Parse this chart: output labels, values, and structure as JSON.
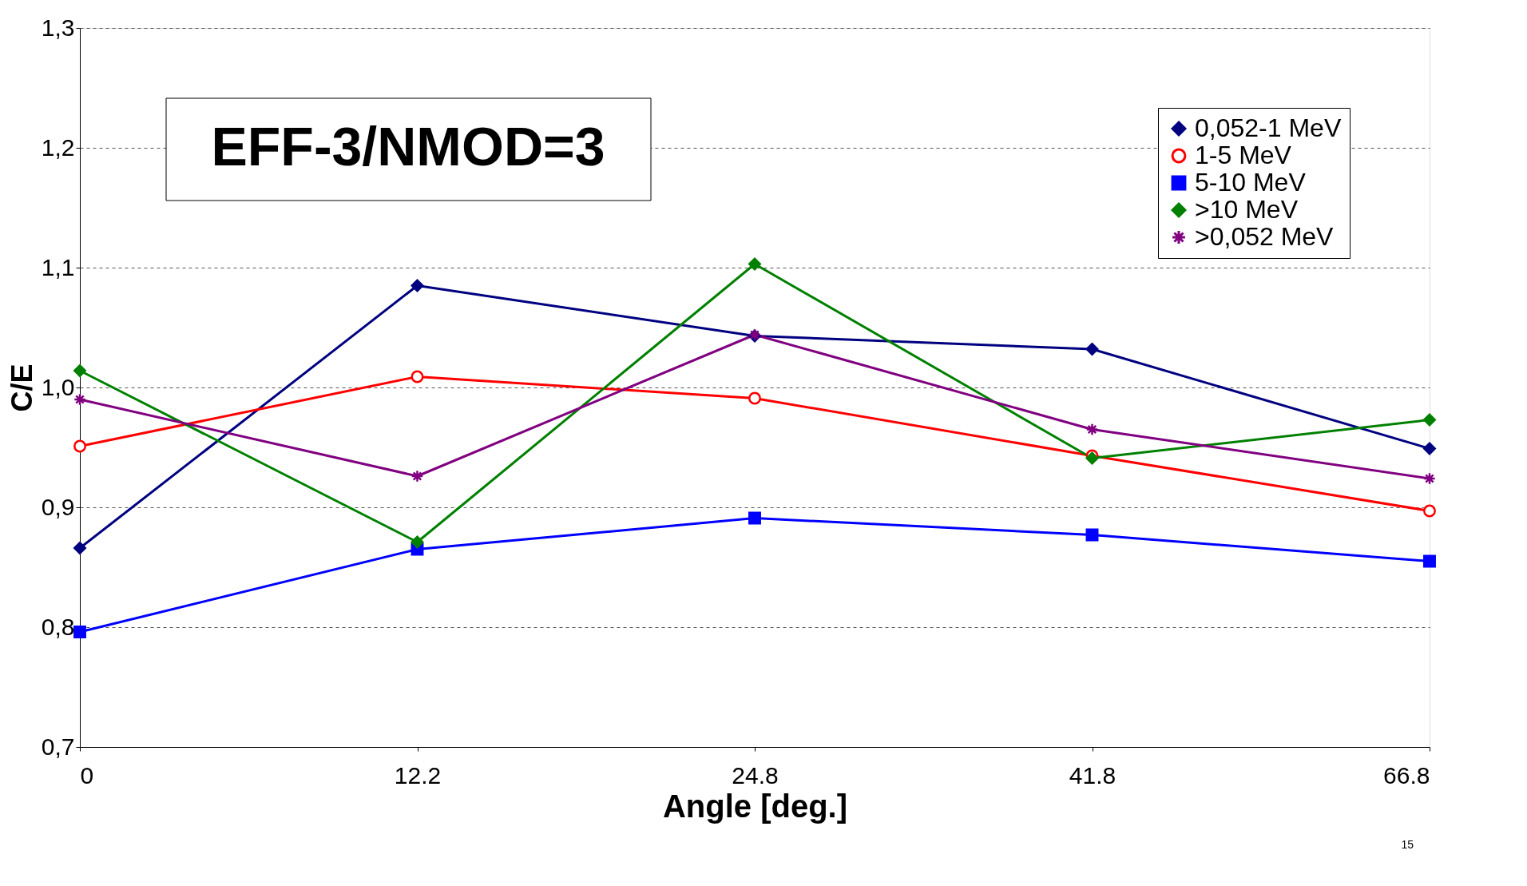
{
  "chart_data": {
    "type": "line",
    "title": "EFF-3/NMOD=3",
    "xlabel": "Angle [deg.]",
    "ylabel": "C/E",
    "categories": [
      "0",
      "12.2",
      "24.8",
      "41.8",
      "66.8"
    ],
    "series": [
      {
        "name": "0,052-1 MeV",
        "color": "#000080",
        "marker": "diamond",
        "values": [
          0.866,
          1.085,
          1.043,
          1.032,
          0.949
        ]
      },
      {
        "name": "1-5 MeV",
        "color": "#ff0000",
        "marker": "circle",
        "values": [
          0.951,
          1.009,
          0.991,
          0.943,
          0.897
        ]
      },
      {
        "name": "5-10 MeV",
        "color": "#0000ff",
        "marker": "square",
        "values": [
          0.796,
          0.865,
          0.891,
          0.877,
          0.855
        ]
      },
      {
        "name": ">10 MeV",
        "color": "#008000",
        "marker": "diamond",
        "values": [
          1.014,
          0.871,
          1.103,
          0.941,
          0.973
        ]
      },
      {
        "name": ">0,052 MeV",
        "color": "#800080",
        "marker": "cross",
        "values": [
          0.99,
          0.926,
          1.044,
          0.965,
          0.924
        ]
      }
    ],
    "ylim": [
      0.7,
      1.3
    ],
    "yticks": [
      {
        "value": 0.7,
        "label": "0,7"
      },
      {
        "value": 0.8,
        "label": "0,8"
      },
      {
        "value": 0.9,
        "label": "0,9"
      },
      {
        "value": 1.0,
        "label": "1,0"
      },
      {
        "value": 1.1,
        "label": "1,1"
      },
      {
        "value": 1.2,
        "label": "1,2"
      },
      {
        "value": 1.3,
        "label": "1,3"
      }
    ],
    "grid": "y",
    "legend": "top right",
    "line_style": "solid",
    "annotations": [
      "15"
    ]
  }
}
